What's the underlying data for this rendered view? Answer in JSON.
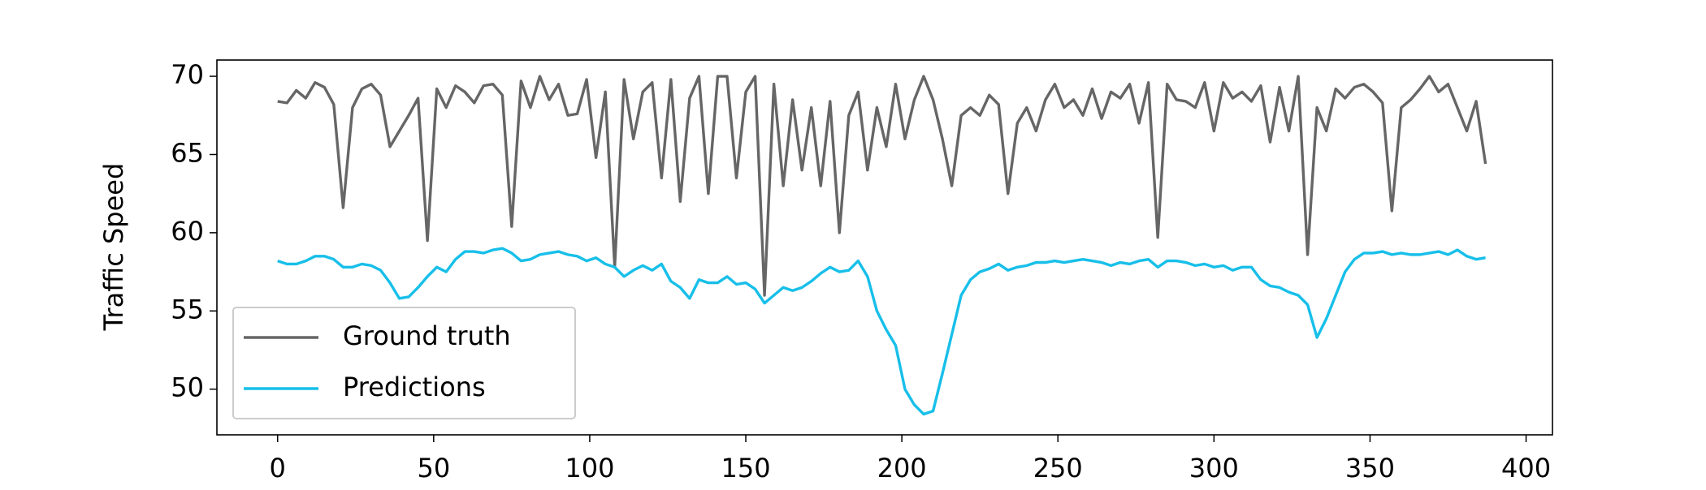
{
  "chart_data": {
    "type": "line",
    "ylabel": "Traffic Speed",
    "x": [
      0,
      3,
      6,
      9,
      12,
      15,
      18,
      21,
      24,
      27,
      30,
      33,
      36,
      39,
      42,
      45,
      48,
      51,
      54,
      57,
      60,
      63,
      66,
      69,
      72,
      75,
      78,
      81,
      84,
      87,
      90,
      93,
      96,
      99,
      102,
      105,
      108,
      111,
      114,
      117,
      120,
      123,
      126,
      129,
      132,
      135,
      138,
      141,
      144,
      147,
      150,
      153,
      156,
      159,
      162,
      165,
      168,
      171,
      174,
      177,
      180,
      183,
      186,
      189,
      192,
      195,
      198,
      201,
      204,
      207,
      210,
      213,
      216,
      219,
      222,
      225,
      228,
      231,
      234,
      237,
      240,
      243,
      246,
      249,
      252,
      255,
      258,
      261,
      264,
      267,
      270,
      273,
      276,
      279,
      282,
      285,
      288,
      291,
      294,
      297,
      300,
      303,
      306,
      309,
      312,
      315,
      318,
      321,
      324,
      327,
      330,
      333,
      336,
      339,
      342,
      345,
      348,
      351,
      354,
      357,
      360,
      363,
      366,
      369,
      372,
      375,
      378,
      381,
      384,
      387
    ],
    "series": [
      {
        "name": "Ground truth",
        "color": "#666666",
        "values": [
          68.4,
          68.3,
          69.1,
          68.6,
          69.6,
          69.3,
          68.2,
          61.6,
          68.0,
          69.2,
          69.5,
          68.8,
          65.5,
          66.5,
          67.5,
          68.6,
          59.5,
          69.2,
          68.0,
          69.4,
          69.0,
          68.3,
          69.4,
          69.5,
          68.8,
          60.4,
          69.7,
          68.0,
          70.0,
          68.5,
          69.5,
          67.5,
          67.6,
          69.8,
          64.8,
          69.0,
          57.8,
          69.8,
          66.0,
          69.0,
          69.6,
          63.5,
          69.8,
          62.0,
          68.6,
          70.0,
          62.5,
          70.0,
          70.0,
          63.5,
          69.0,
          70.0,
          56.0,
          69.5,
          63.0,
          68.5,
          64.0,
          68.0,
          63.0,
          68.4,
          60.0,
          67.5,
          69.0,
          64.0,
          68.0,
          65.5,
          69.5,
          66.0,
          68.5,
          70.0,
          68.5,
          66.0,
          63.0,
          67.5,
          68.0,
          67.5,
          68.8,
          68.2,
          62.5,
          67.0,
          68.0,
          66.5,
          68.5,
          69.5,
          68.0,
          68.5,
          67.5,
          69.2,
          67.3,
          69.0,
          68.6,
          69.5,
          67.0,
          69.6,
          59.7,
          69.5,
          68.5,
          68.4,
          68.0,
          69.6,
          66.5,
          69.6,
          68.6,
          69.0,
          68.4,
          69.4,
          65.8,
          69.3,
          66.5,
          70.0,
          58.6,
          68.0,
          66.5,
          69.2,
          68.6,
          69.3,
          69.5,
          69.0,
          68.3,
          61.4,
          68.0,
          68.5,
          69.2,
          70.0,
          69.0,
          69.5,
          68.0,
          66.5,
          68.4,
          64.4
        ]
      },
      {
        "name": "Predictions",
        "color": "#17bfe9",
        "values": [
          58.2,
          58.0,
          58.0,
          58.2,
          58.5,
          58.5,
          58.3,
          57.8,
          57.8,
          58.0,
          57.9,
          57.6,
          56.8,
          55.8,
          55.9,
          56.5,
          57.2,
          57.8,
          57.5,
          58.3,
          58.8,
          58.8,
          58.7,
          58.9,
          59.0,
          58.7,
          58.2,
          58.3,
          58.6,
          58.7,
          58.8,
          58.6,
          58.5,
          58.2,
          58.4,
          58.0,
          57.8,
          57.2,
          57.6,
          57.9,
          57.6,
          58.0,
          56.9,
          56.5,
          55.8,
          57.0,
          56.8,
          56.8,
          57.2,
          56.7,
          56.8,
          56.4,
          55.5,
          56.0,
          56.5,
          56.3,
          56.5,
          56.9,
          57.4,
          57.8,
          57.5,
          57.6,
          58.2,
          57.2,
          55.0,
          53.8,
          52.8,
          50.0,
          49.0,
          48.4,
          48.6,
          51.0,
          53.5,
          56.0,
          57.0,
          57.5,
          57.7,
          58.0,
          57.6,
          57.8,
          57.9,
          58.1,
          58.1,
          58.2,
          58.1,
          58.2,
          58.3,
          58.2,
          58.1,
          57.9,
          58.1,
          58.0,
          58.2,
          58.3,
          57.8,
          58.2,
          58.2,
          58.1,
          57.9,
          58.0,
          57.8,
          57.9,
          57.6,
          57.8,
          57.8,
          57.0,
          56.6,
          56.5,
          56.2,
          56.0,
          55.4,
          53.3,
          54.5,
          56.0,
          57.5,
          58.3,
          58.7,
          58.7,
          58.8,
          58.6,
          58.7,
          58.6,
          58.6,
          58.7,
          58.8,
          58.6,
          58.9,
          58.5,
          58.3,
          58.4
        ]
      }
    ],
    "xlim": [
      -19.45,
      408.45
    ],
    "xticks": [
      0,
      50,
      100,
      150,
      200,
      250,
      300,
      350,
      400
    ],
    "ylim": [
      47.08,
      71.04
    ],
    "yticks": [
      50,
      55,
      60,
      65,
      70
    ],
    "legend": "lower left"
  }
}
